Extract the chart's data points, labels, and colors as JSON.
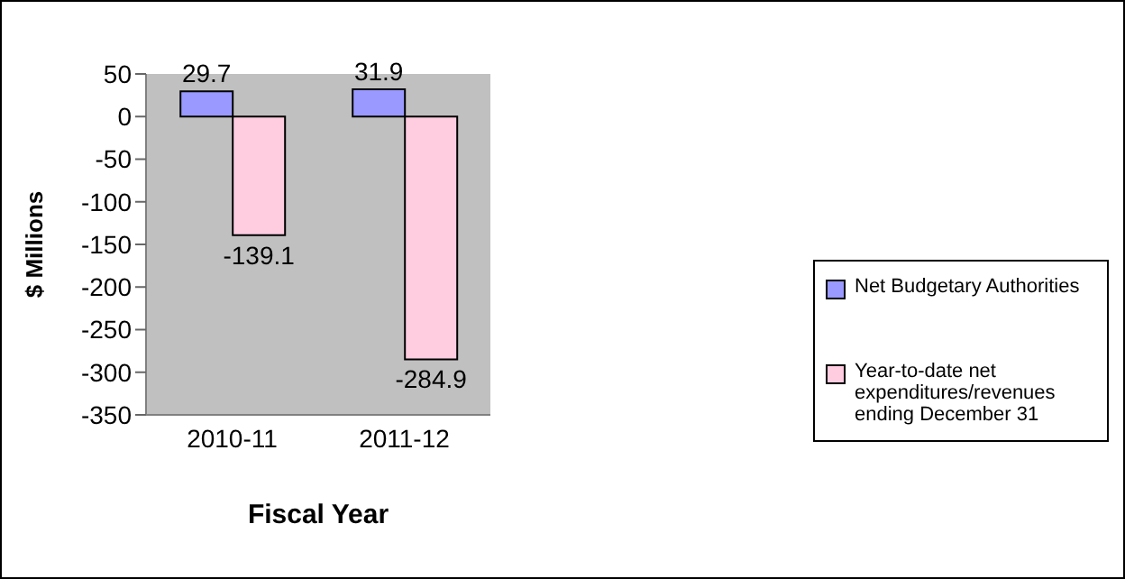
{
  "chart_data": {
    "type": "bar",
    "xlabel": "Fiscal Year",
    "ylabel": "$ Millions",
    "categories": [
      "2010-11",
      "2011-12"
    ],
    "series": [
      {
        "name": "Net Budgetary Authorities",
        "color": "#9999ff",
        "values": [
          29.7,
          31.9
        ]
      },
      {
        "name": "Year-to-date net expenditures/revenues ending December 31",
        "color": "#ffcce0",
        "values": [
          -139.1,
          -284.9
        ]
      }
    ],
    "ylim": [
      -350,
      50
    ],
    "yticks": [
      50,
      0,
      -50,
      -100,
      -150,
      -200,
      -250,
      -300,
      -350
    ],
    "grid": false,
    "legend": "right",
    "data_labels": true
  }
}
